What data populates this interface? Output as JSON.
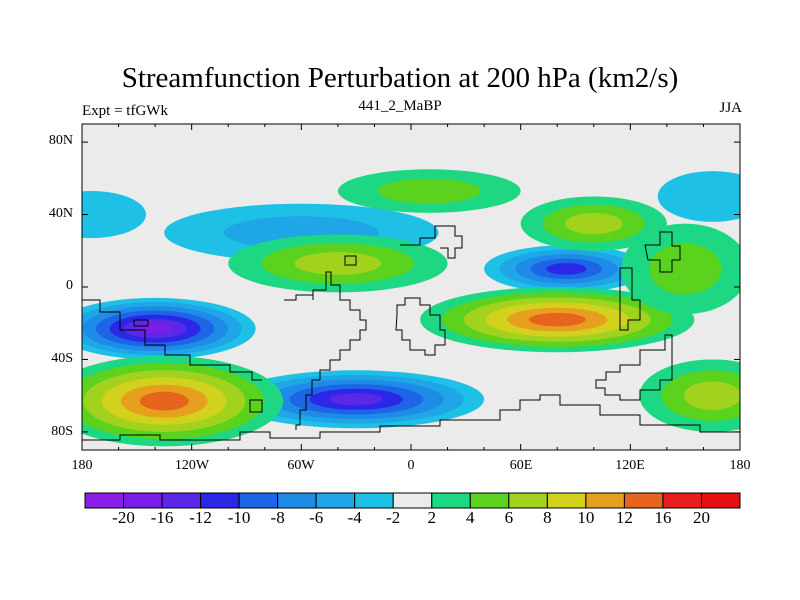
{
  "header": {
    "title": "Streamfunction Perturbation at 200 hPa (km2/s)",
    "left_label": "Expt = tfGWk",
    "center_label": "441_2_MaBP",
    "right_label": "JJA"
  },
  "axes": {
    "y_ticks": [
      "80N",
      "40N",
      "0",
      "40S",
      "80S"
    ],
    "x_ticks": [
      "180",
      "120W",
      "60W",
      "0",
      "60E",
      "120E",
      "180"
    ]
  },
  "colorbar": {
    "labels": [
      "-20",
      "-16",
      "-12",
      "-10",
      "-8",
      "-6",
      "-4",
      "-2",
      "2",
      "4",
      "6",
      "8",
      "10",
      "12",
      "16",
      "20"
    ],
    "colors": [
      "#8a1ee6",
      "#7a1ee6",
      "#5a28e6",
      "#2a28e6",
      "#1e64e6",
      "#1e8ce6",
      "#1ea6e6",
      "#1ec0e6",
      "#ebebeb",
      "#1ed782",
      "#5ad21e",
      "#a0d21e",
      "#d2d21e",
      "#e6a01e",
      "#e6641e",
      "#e61e1e",
      "#e60f0f"
    ]
  },
  "map_data": {
    "extent": {
      "lon": [
        -180,
        180
      ],
      "lat": [
        -90,
        90
      ]
    },
    "background_color": "#ebebeb",
    "features": [
      {
        "lon": -140,
        "lat": -23,
        "rx": 55,
        "ry": 17,
        "level": -20
      },
      {
        "lon": -30,
        "lat": -62,
        "rx": 70,
        "ry": 16,
        "level": -14
      },
      {
        "lon": 85,
        "lat": 10,
        "rx": 45,
        "ry": 13,
        "level": -11
      },
      {
        "lon": -60,
        "lat": 30,
        "rx": 75,
        "ry": 16,
        "level": -5
      },
      {
        "lon": -175,
        "lat": 40,
        "rx": 30,
        "ry": 13,
        "level": -3
      },
      {
        "lon": 165,
        "lat": 50,
        "rx": 30,
        "ry": 14,
        "level": -4
      },
      {
        "lon": -135,
        "lat": -63,
        "rx": 65,
        "ry": 25,
        "level": 14
      },
      {
        "lon": 80,
        "lat": -18,
        "rx": 75,
        "ry": 18,
        "level": 16
      },
      {
        "lon": -40,
        "lat": 13,
        "rx": 60,
        "ry": 16,
        "level": 7
      },
      {
        "lon": 10,
        "lat": 53,
        "rx": 50,
        "ry": 12,
        "level": 6
      },
      {
        "lon": 100,
        "lat": 35,
        "rx": 40,
        "ry": 15,
        "level": 7
      },
      {
        "lon": 150,
        "lat": 10,
        "rx": 35,
        "ry": 25,
        "level": 5
      },
      {
        "lon": 165,
        "lat": -60,
        "rx": 40,
        "ry": 20,
        "level": 8
      }
    ],
    "coastline": "coarse T42 grid-box outline"
  }
}
